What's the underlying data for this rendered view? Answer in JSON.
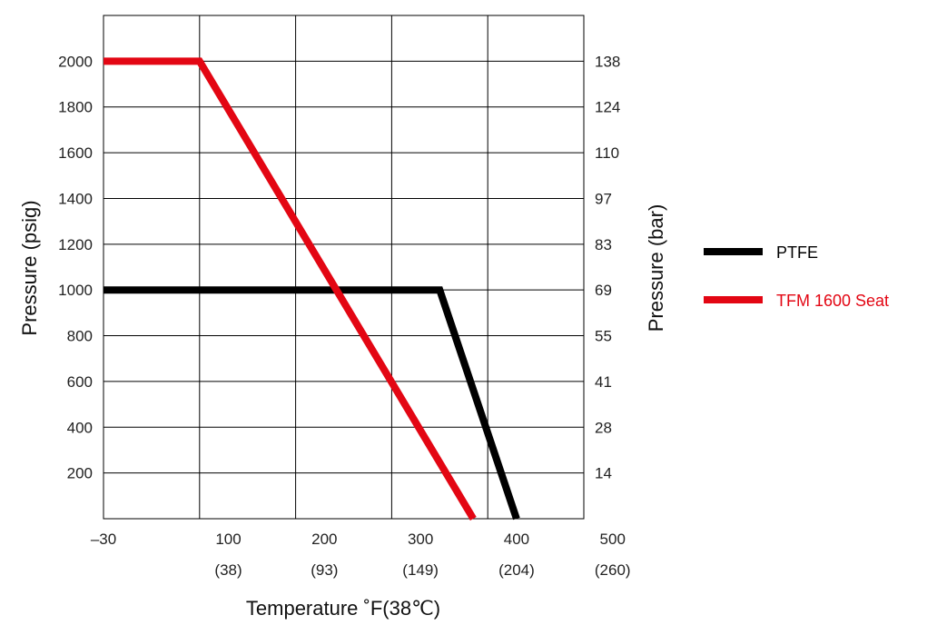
{
  "chart_data": {
    "type": "line",
    "ylabel": "Pressure (psig)",
    "y2label": "Pressure (bar)",
    "xlabel": "Temperature ˚F(38℃)",
    "xlim": [
      -30,
      470
    ],
    "ylim": [
      0,
      2200
    ],
    "x_ticks": [
      {
        "value": -30,
        "label": "–30",
        "sub": ""
      },
      {
        "value": 100,
        "label": "100",
        "sub": "(38)"
      },
      {
        "value": 200,
        "label": "200",
        "sub": "(93)"
      },
      {
        "value": 300,
        "label": "300",
        "sub": "(149)"
      },
      {
        "value": 400,
        "label": "400",
        "sub": "(204)"
      },
      {
        "value": 500,
        "label": "500",
        "sub": "(260)"
      }
    ],
    "x_gridlines": [
      -30,
      70,
      170,
      270,
      370,
      470
    ],
    "y_ticks": [
      200,
      400,
      600,
      800,
      1000,
      1200,
      1400,
      1600,
      1800,
      2000
    ],
    "y_gridlines": [
      200,
      400,
      600,
      800,
      1000,
      1200,
      1400,
      1600,
      1800,
      2000,
      2200
    ],
    "y2_ticks": [
      {
        "value": 200,
        "label": "14"
      },
      {
        "value": 400,
        "label": "28"
      },
      {
        "value": 600,
        "label": "41"
      },
      {
        "value": 800,
        "label": "55"
      },
      {
        "value": 1000,
        "label": "69"
      },
      {
        "value": 1200,
        "label": "83"
      },
      {
        "value": 1400,
        "label": "97"
      },
      {
        "value": 1600,
        "label": "110"
      },
      {
        "value": 1800,
        "label": "124"
      },
      {
        "value": 2000,
        "label": "138"
      }
    ],
    "grid": true,
    "legend_position": "right",
    "series": [
      {
        "name": "PTFE",
        "color": "#000000",
        "x": [
          -30,
          320,
          400
        ],
        "y": [
          1000,
          1000,
          0
        ]
      },
      {
        "name": "TFM 1600 Seat",
        "color": "#e30613",
        "x": [
          -30,
          70,
          355
        ],
        "y": [
          2000,
          2000,
          0
        ]
      }
    ]
  }
}
